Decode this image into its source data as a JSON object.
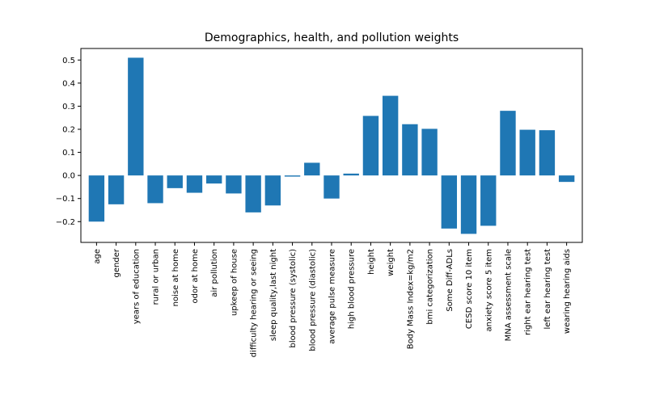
{
  "chart_data": {
    "type": "bar",
    "title": "Demographics, health, and pollution weights",
    "xlabel": "",
    "ylabel": "",
    "ylim": [
      -0.29,
      0.55
    ],
    "yticks": [
      -0.2,
      -0.1,
      0.0,
      0.1,
      0.2,
      0.3,
      0.4,
      0.5
    ],
    "ytick_labels": [
      "−0.2",
      "−0.1",
      "0.0",
      "0.1",
      "0.2",
      "0.3",
      "0.4",
      "0.5"
    ],
    "grid": false,
    "bar_color": "#1f77b4",
    "categories": [
      "age",
      "gender",
      "years of education",
      "rural or urban",
      "noise at home",
      "odor at home",
      "air pollution",
      "upkeep of house",
      "difficulty hearing or seeing",
      "sleep quality,last night",
      "blood pressure (systolic)",
      "blood pressure (diastolic)",
      "average pulse measure",
      "high blood pressure",
      "height",
      "weight",
      "Body Mass Index=kg/m2",
      "bmi categorization",
      "Some Diff-ADLs",
      "CESD score 10 item",
      "anxiety score 5 item",
      "MNA assessment scale",
      "right ear hearing test",
      "left ear hearing test",
      "wearing hearing aids"
    ],
    "values": [
      -0.2,
      -0.125,
      0.51,
      -0.12,
      -0.055,
      -0.075,
      -0.035,
      -0.078,
      -0.16,
      -0.13,
      -0.005,
      0.055,
      -0.1,
      0.008,
      0.258,
      0.345,
      0.222,
      0.202,
      -0.23,
      -0.253,
      -0.218,
      0.28,
      0.198,
      0.196,
      -0.028
    ]
  }
}
